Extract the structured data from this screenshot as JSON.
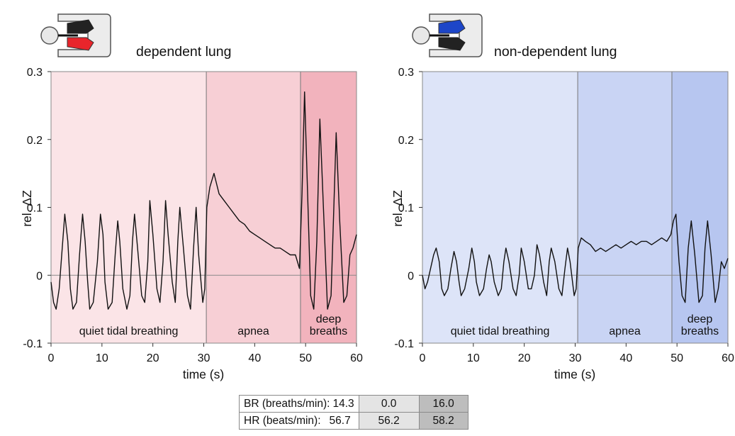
{
  "colors": {
    "dependent": {
      "quiet": "#fbe4e7",
      "apnea": "#f7cfd5",
      "deep": "#f2b3bd",
      "icon": "#e8252b"
    },
    "nondependent": {
      "quiet": "#dde4f8",
      "apnea": "#c9d4f4",
      "deep": "#b7c6f0",
      "icon": "#1d46c8"
    },
    "trace": "#111111",
    "table": {
      "label": "#ffffff",
      "apnea": "#e4e4e4",
      "deep": "#bdbdbd"
    }
  },
  "icons": [
    "lung-orientation-icon-dependent",
    "lung-orientation-icon-nondependent"
  ],
  "chart_data": [
    {
      "type": "line",
      "title": "dependent lung",
      "xlabel": "time (s)",
      "ylabel": "rel. ΔZ",
      "xlim": [
        0,
        60
      ],
      "ylim": [
        -0.1,
        0.3
      ],
      "xticks": [
        "0",
        "10",
        "20",
        "30",
        "40",
        "50",
        "60"
      ],
      "yticks": [
        "-0.1",
        "0",
        "0.1",
        "0.2",
        "0.3"
      ],
      "phases": [
        {
          "label": "quiet tidal breathing",
          "start": 0,
          "end": 30.5
        },
        {
          "label": "apnea",
          "start": 30.5,
          "end": 49
        },
        {
          "label": "deep breaths",
          "start": 49,
          "end": 60
        }
      ],
      "series": [
        {
          "x": [
            0,
            0.5,
            1.0,
            1.6,
            2.2,
            2.7,
            3.3,
            3.8,
            4.3,
            5.0,
            5.6,
            6.2,
            6.7,
            7.2,
            7.6,
            8.3,
            9.1,
            9.7,
            10.2,
            10.6,
            11.2,
            12.0,
            12.6,
            13.1,
            13.5,
            14.1,
            14.9,
            15.5,
            16.0,
            16.4,
            17.0,
            17.8,
            18.4,
            19.0,
            19.4,
            20.0,
            20.8,
            21.4,
            22.0,
            22.5,
            23.0,
            23.8,
            24.4,
            24.9,
            25.3,
            26.0,
            26.8,
            27.4,
            28.0,
            28.5,
            29.0,
            29.8,
            30.2,
            30.6,
            31.2,
            32.0,
            33.0,
            34.0,
            35.0,
            36.0,
            37.0,
            38.0,
            39.0,
            40.0,
            41.0,
            42.0,
            43.0,
            44.0,
            45.0,
            46.0,
            47.0,
            48.0,
            48.8,
            49.3,
            49.8,
            50.4,
            51.0,
            51.6,
            52.2,
            52.8,
            53.5,
            54.3,
            55.0,
            55.5,
            56.0,
            56.7,
            57.5,
            58.1,
            58.7,
            59.3,
            60.0
          ],
          "y": [
            -0.01,
            -0.04,
            -0.05,
            -0.02,
            0.04,
            0.09,
            0.05,
            -0.02,
            -0.05,
            -0.04,
            0.03,
            0.09,
            0.05,
            -0.01,
            -0.05,
            -0.04,
            0.02,
            0.09,
            0.06,
            -0.01,
            -0.05,
            -0.04,
            0.03,
            0.08,
            0.05,
            -0.02,
            -0.05,
            -0.03,
            0.05,
            0.09,
            0.04,
            -0.03,
            -0.04,
            0.02,
            0.11,
            0.06,
            -0.02,
            -0.04,
            0.02,
            0.11,
            0.06,
            -0.01,
            -0.04,
            0.05,
            0.1,
            0.04,
            -0.03,
            -0.05,
            0.04,
            0.1,
            0.03,
            -0.04,
            -0.02,
            0.1,
            0.13,
            0.15,
            0.12,
            0.11,
            0.1,
            0.09,
            0.08,
            0.075,
            0.065,
            0.06,
            0.055,
            0.05,
            0.045,
            0.04,
            0.04,
            0.035,
            0.03,
            0.03,
            0.01,
            0.12,
            0.27,
            0.12,
            -0.03,
            -0.05,
            0.05,
            0.23,
            0.1,
            -0.05,
            -0.03,
            0.09,
            0.21,
            0.08,
            -0.04,
            -0.03,
            0.03,
            0.04,
            0.06
          ]
        }
      ]
    },
    {
      "type": "line",
      "title": "non-dependent lung",
      "xlabel": "time (s)",
      "ylabel": "rel. ΔZ",
      "xlim": [
        0,
        60
      ],
      "ylim": [
        -0.1,
        0.3
      ],
      "xticks": [
        "0",
        "10",
        "20",
        "30",
        "40",
        "50",
        "60"
      ],
      "yticks": [
        "-0.1",
        "0",
        "0.1",
        "0.2",
        "0.3"
      ],
      "phases": [
        {
          "label": "quiet tidal breathing",
          "start": 0,
          "end": 30.5
        },
        {
          "label": "apnea",
          "start": 30.5,
          "end": 49
        },
        {
          "label": "deep breaths",
          "start": 49,
          "end": 60
        }
      ],
      "series": [
        {
          "x": [
            0,
            0.5,
            1.0,
            1.6,
            2.2,
            2.7,
            3.3,
            3.8,
            4.3,
            5.0,
            5.6,
            6.2,
            6.7,
            7.2,
            7.6,
            8.3,
            9.1,
            9.7,
            10.2,
            10.6,
            11.2,
            12.0,
            12.6,
            13.1,
            13.5,
            14.1,
            14.9,
            15.5,
            16.0,
            16.4,
            17.0,
            17.8,
            18.4,
            19.0,
            19.4,
            20.0,
            20.8,
            21.4,
            22.0,
            22.5,
            23.0,
            23.8,
            24.4,
            24.9,
            25.3,
            26.0,
            26.8,
            27.4,
            28.0,
            28.5,
            29.0,
            29.8,
            30.2,
            30.6,
            31.2,
            32.0,
            33.0,
            34.0,
            35.0,
            36.0,
            37.0,
            38.0,
            39.0,
            40.0,
            41.0,
            42.0,
            43.0,
            44.0,
            45.0,
            46.0,
            47.0,
            48.0,
            48.8,
            49.3,
            49.8,
            50.4,
            51.0,
            51.6,
            52.2,
            52.8,
            53.5,
            54.3,
            55.0,
            55.5,
            56.0,
            56.7,
            57.5,
            58.1,
            58.7,
            59.3,
            60.0
          ],
          "y": [
            0.0,
            -0.02,
            -0.01,
            0.01,
            0.03,
            0.04,
            0.02,
            -0.02,
            -0.03,
            -0.02,
            0.01,
            0.035,
            0.02,
            -0.01,
            -0.03,
            -0.02,
            0.01,
            0.04,
            0.02,
            -0.01,
            -0.03,
            -0.02,
            0.01,
            0.03,
            0.02,
            -0.01,
            -0.03,
            -0.02,
            0.02,
            0.04,
            0.02,
            -0.02,
            -0.03,
            0.0,
            0.04,
            0.02,
            -0.02,
            -0.02,
            0.0,
            0.045,
            0.03,
            -0.01,
            -0.03,
            0.02,
            0.04,
            0.02,
            -0.02,
            -0.03,
            0.01,
            0.04,
            0.02,
            -0.03,
            -0.02,
            0.04,
            0.055,
            0.05,
            0.045,
            0.035,
            0.04,
            0.035,
            0.04,
            0.045,
            0.04,
            0.045,
            0.05,
            0.045,
            0.05,
            0.05,
            0.045,
            0.05,
            0.055,
            0.05,
            0.06,
            0.08,
            0.09,
            0.02,
            -0.03,
            -0.04,
            0.04,
            0.08,
            0.03,
            -0.04,
            -0.03,
            0.04,
            0.08,
            0.03,
            -0.04,
            -0.02,
            0.02,
            0.01,
            0.025
          ]
        }
      ]
    }
  ],
  "table": {
    "rows": [
      {
        "label": "BR (breaths/min):",
        "values": [
          "14.3",
          "0.0",
          "16.0"
        ]
      },
      {
        "label": "HR (beats/min):",
        "values": [
          "56.7",
          "56.2",
          "58.2"
        ]
      }
    ]
  }
}
